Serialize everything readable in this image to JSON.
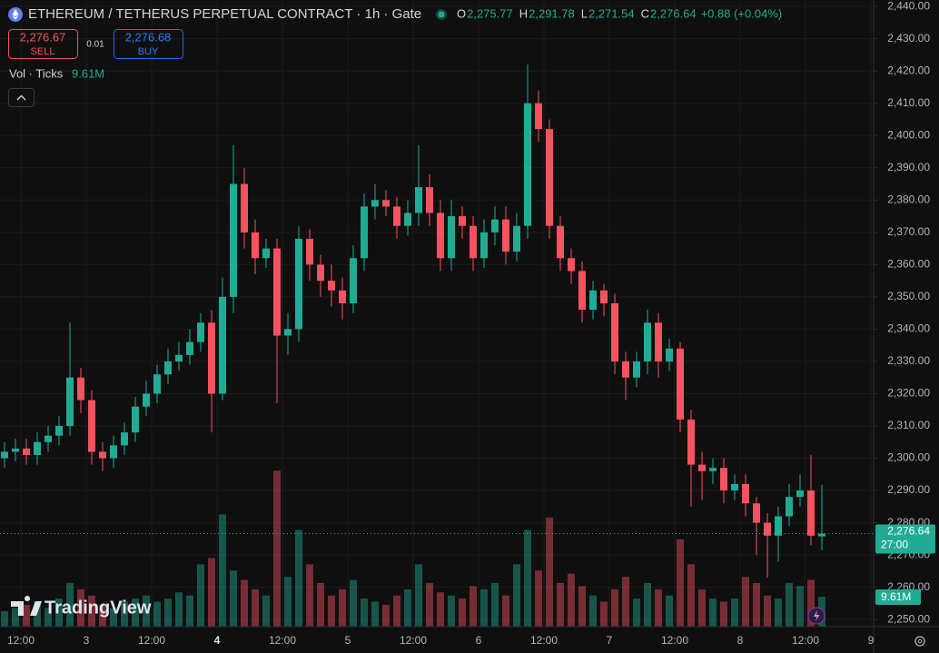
{
  "header": {
    "title": "ETHEREUM / TETHERUS PERPETUAL CONTRACT · 1h · Gate",
    "ohlc": [
      {
        "key": "O",
        "value": "2,275.77"
      },
      {
        "key": "H",
        "value": "2,291.78"
      },
      {
        "key": "L",
        "value": "2,271.54"
      },
      {
        "key": "C",
        "value": "2,276.64"
      }
    ],
    "change": "+0.88 (+0.04%)"
  },
  "trade": {
    "sell_price": "2,276.67",
    "sell_label": "SELL",
    "spread": "0.01",
    "buy_price": "2,276.68",
    "buy_label": "BUY"
  },
  "indicator": {
    "name": "Vol · Ticks",
    "value": "9.61M"
  },
  "watermark": "TradingView",
  "chart_data": {
    "type": "candlestick",
    "x": [
      -15,
      -13,
      -11,
      -9,
      -7,
      -5,
      -3,
      -1,
      1,
      3,
      5,
      7,
      9,
      11,
      13,
      15,
      17,
      19,
      21,
      23,
      25,
      27,
      29,
      31,
      33,
      35,
      37,
      39,
      41,
      43,
      45,
      47,
      49,
      51,
      53,
      55,
      57,
      59,
      61,
      63,
      65,
      67,
      69,
      71,
      73,
      75,
      77,
      79,
      81,
      83,
      85,
      87,
      89,
      91,
      93,
      95,
      97,
      99,
      101,
      103,
      105,
      107,
      109,
      111,
      113,
      115,
      117,
      119,
      121,
      123,
      125,
      127,
      129,
      131,
      133,
      135
    ],
    "open": [
      2300,
      2302,
      2303,
      2301,
      2305,
      2307,
      2310,
      2325,
      2318,
      2302,
      2300,
      2304,
      2308,
      2316,
      2320,
      2326,
      2330,
      2332,
      2336,
      2342,
      2320,
      2350,
      2385,
      2370,
      2362,
      2365,
      2338,
      2340,
      2368,
      2360,
      2355,
      2352,
      2348,
      2362,
      2378,
      2380,
      2378,
      2372,
      2376,
      2384,
      2376,
      2362,
      2375,
      2372,
      2362,
      2370,
      2374,
      2364,
      2372,
      2410,
      2402,
      2372,
      2362,
      2358,
      2346,
      2352,
      2348,
      2330,
      2325,
      2330,
      2342,
      2330,
      2334,
      2312,
      2298,
      2296,
      2297,
      2290,
      2292,
      2286,
      2280,
      2276,
      2282,
      2288,
      2290,
      2275.77
    ],
    "high": [
      2305,
      2306,
      2306,
      2308,
      2310,
      2313,
      2342,
      2328,
      2321,
      2305,
      2307,
      2311,
      2319,
      2324,
      2329,
      2334,
      2336,
      2340,
      2345,
      2346,
      2356,
      2397,
      2390,
      2374,
      2368,
      2368,
      2345,
      2372,
      2371,
      2363,
      2360,
      2356,
      2366,
      2382,
      2385,
      2383,
      2381,
      2380,
      2397,
      2388,
      2380,
      2380,
      2378,
      2375,
      2374,
      2378,
      2378,
      2376,
      2422,
      2414,
      2405,
      2375,
      2365,
      2361,
      2355,
      2354,
      2351,
      2333,
      2333,
      2346,
      2345,
      2337,
      2336,
      2315,
      2302,
      2300,
      2300,
      2295,
      2295,
      2288,
      2283,
      2285,
      2292,
      2295,
      2301,
      2291.78
    ],
    "low": [
      2297,
      2299,
      2298,
      2298,
      2302,
      2304,
      2307,
      2314,
      2298,
      2296,
      2297,
      2301,
      2305,
      2313,
      2317,
      2323,
      2327,
      2329,
      2333,
      2308,
      2318,
      2345,
      2365,
      2357,
      2359,
      2317,
      2332,
      2336,
      2355,
      2350,
      2347,
      2343,
      2345,
      2358,
      2374,
      2375,
      2368,
      2369,
      2372,
      2372,
      2358,
      2358,
      2368,
      2358,
      2359,
      2366,
      2360,
      2361,
      2368,
      2398,
      2368,
      2358,
      2354,
      2342,
      2343,
      2344,
      2326,
      2318,
      2322,
      2326,
      2325,
      2327,
      2308,
      2285,
      2287,
      2292,
      2286,
      2287,
      2282,
      2270,
      2263,
      2268,
      2279,
      2285,
      2273,
      2271.54
    ],
    "close": [
      2302,
      2303,
      2301,
      2305,
      2307,
      2310,
      2325,
      2318,
      2302,
      2300,
      2304,
      2308,
      2316,
      2320,
      2326,
      2330,
      2332,
      2336,
      2342,
      2320,
      2350,
      2385,
      2370,
      2362,
      2365,
      2338,
      2340,
      2368,
      2360,
      2355,
      2352,
      2348,
      2362,
      2378,
      2380,
      2378,
      2372,
      2376,
      2384,
      2376,
      2362,
      2375,
      2372,
      2362,
      2370,
      2374,
      2364,
      2372,
      2410,
      2402,
      2372,
      2362,
      2358,
      2346,
      2352,
      2348,
      2330,
      2325,
      2330,
      2342,
      2330,
      2334,
      2312,
      2298,
      2296,
      2297,
      2290,
      2292,
      2286,
      2280,
      2276,
      2282,
      2288,
      2290,
      2276,
      2276.64
    ],
    "volume": [
      5,
      6,
      7,
      8,
      6,
      9,
      14,
      12,
      10,
      7,
      6,
      8,
      9,
      10,
      8,
      9,
      11,
      10,
      20,
      22,
      36,
      18,
      15,
      12,
      10,
      50,
      16,
      31,
      20,
      14,
      10,
      12,
      15,
      9,
      8,
      7,
      10,
      12,
      20,
      14,
      11,
      10,
      9,
      13,
      12,
      14,
      10,
      20,
      31,
      18,
      35,
      14,
      17,
      13,
      10,
      8,
      12,
      16,
      9,
      14,
      12,
      10,
      28,
      20,
      12,
      9,
      8,
      9,
      16,
      14,
      10,
      9,
      14,
      13,
      15,
      9.61
    ],
    "vlim": [
      0,
      60
    ],
    "up_color": "#22ab94",
    "down_color": "#f7525f",
    "last_price_label": "2,276.64",
    "countdown": "27:00",
    "xlim": [
      -15.833,
      144.5
    ],
    "xticks": [
      {
        "value": -12,
        "label": "12:00"
      },
      {
        "value": 0,
        "label": "3"
      },
      {
        "value": 12,
        "label": "12:00"
      },
      {
        "value": 24,
        "label": "4"
      },
      {
        "value": 36,
        "label": "12:00"
      },
      {
        "value": 48,
        "label": "5"
      },
      {
        "value": 60,
        "label": "12:00"
      },
      {
        "value": 72,
        "label": "6"
      },
      {
        "value": 84,
        "label": "12:00"
      },
      {
        "value": 96,
        "label": "7"
      },
      {
        "value": 108,
        "label": "12:00"
      },
      {
        "value": 120,
        "label": "8"
      },
      {
        "value": 132,
        "label": "12:00"
      },
      {
        "value": 144,
        "label": "9"
      }
    ],
    "ylim": [
      2247.8,
      2442
    ],
    "yticks": [
      {
        "value": 2250,
        "label": "2,250.00"
      },
      {
        "value": 2260,
        "label": "2,260.00"
      },
      {
        "value": 2270,
        "label": "2,270.00"
      },
      {
        "value": 2280,
        "label": "2,280.00"
      },
      {
        "value": 2290,
        "label": "2,290.00"
      },
      {
        "value": 2300,
        "label": "2,300.00"
      },
      {
        "value": 2310,
        "label": "2,310.00"
      },
      {
        "value": 2320,
        "label": "2,320.00"
      },
      {
        "value": 2330,
        "label": "2,330.00"
      },
      {
        "value": 2340,
        "label": "2,340.00"
      },
      {
        "value": 2350,
        "label": "2,350.00"
      },
      {
        "value": 2360,
        "label": "2,360.00"
      },
      {
        "value": 2370,
        "label": "2,370.00"
      },
      {
        "value": 2380,
        "label": "2,380.00"
      },
      {
        "value": 2390,
        "label": "2,390.00"
      },
      {
        "value": 2400,
        "label": "2,400.00"
      },
      {
        "value": 2410,
        "label": "2,410.00"
      },
      {
        "value": 2420,
        "label": "2,420.00"
      },
      {
        "value": 2430,
        "label": "2,430.00"
      },
      {
        "value": 2440,
        "label": "2,440.00"
      }
    ],
    "grid": true
  }
}
